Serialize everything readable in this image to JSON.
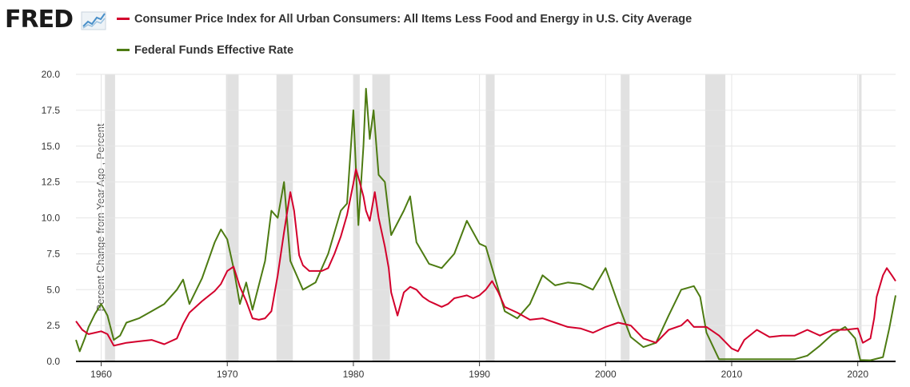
{
  "brand": {
    "logo_text": "FRED"
  },
  "colors": {
    "cpi": "#d3002c",
    "ffr": "#4d7b12",
    "recession": "#e1e1e1",
    "axis": "#000000"
  },
  "chart_data": {
    "type": "line",
    "title": "",
    "xlabel": "",
    "ylabel": "Percent Change from Year Ago , Percent",
    "xlim": [
      1958.0,
      2023.0
    ],
    "ylim": [
      0,
      20
    ],
    "x_ticks": [
      1960,
      1970,
      1980,
      1990,
      2000,
      2010,
      2020
    ],
    "y_ticks": [
      "0.0",
      "2.5",
      "5.0",
      "7.5",
      "10.0",
      "12.5",
      "15.0",
      "17.5",
      "20.0"
    ],
    "recessions": [
      [
        1960.3,
        1961.1
      ],
      [
        1969.9,
        1970.9
      ],
      [
        1973.9,
        1975.2
      ],
      [
        1980.0,
        1980.5
      ],
      [
        1981.5,
        1982.9
      ],
      [
        1990.5,
        1991.2
      ],
      [
        2001.2,
        2001.9
      ],
      [
        2007.9,
        2009.5
      ],
      [
        2020.1,
        2020.3
      ]
    ],
    "series": [
      {
        "name": "Consumer Price Index for All Urban Consumers: All Items Less Food and Energy in U.S. City Average",
        "color": "#d3002c",
        "points": [
          [
            1958.0,
            2.8
          ],
          [
            1958.5,
            2.2
          ],
          [
            1959.0,
            1.9
          ],
          [
            1959.5,
            2.0
          ],
          [
            1960.0,
            2.1
          ],
          [
            1960.5,
            1.9
          ],
          [
            1961.0,
            1.1
          ],
          [
            1961.5,
            1.2
          ],
          [
            1962.0,
            1.3
          ],
          [
            1963.0,
            1.4
          ],
          [
            1964.0,
            1.5
          ],
          [
            1965.0,
            1.2
          ],
          [
            1966.0,
            1.6
          ],
          [
            1966.5,
            2.6
          ],
          [
            1967.0,
            3.4
          ],
          [
            1968.0,
            4.2
          ],
          [
            1969.0,
            4.9
          ],
          [
            1969.5,
            5.4
          ],
          [
            1970.0,
            6.3
          ],
          [
            1970.5,
            6.6
          ],
          [
            1971.0,
            5.2
          ],
          [
            1971.5,
            4.2
          ],
          [
            1972.0,
            3.0
          ],
          [
            1972.5,
            2.9
          ],
          [
            1973.0,
            3.0
          ],
          [
            1973.5,
            3.5
          ],
          [
            1974.0,
            6.0
          ],
          [
            1974.5,
            9.0
          ],
          [
            1975.0,
            11.8
          ],
          [
            1975.3,
            10.5
          ],
          [
            1975.7,
            7.4
          ],
          [
            1976.0,
            6.7
          ],
          [
            1976.5,
            6.3
          ],
          [
            1977.0,
            6.3
          ],
          [
            1977.5,
            6.3
          ],
          [
            1978.0,
            6.5
          ],
          [
            1978.5,
            7.5
          ],
          [
            1979.0,
            8.7
          ],
          [
            1979.5,
            10.2
          ],
          [
            1980.0,
            12.4
          ],
          [
            1980.2,
            13.4
          ],
          [
            1980.5,
            12.5
          ],
          [
            1980.8,
            11.5
          ],
          [
            1981.0,
            10.5
          ],
          [
            1981.3,
            9.8
          ],
          [
            1981.7,
            11.8
          ],
          [
            1982.0,
            10.0
          ],
          [
            1982.5,
            8.0
          ],
          [
            1982.8,
            6.5
          ],
          [
            1983.0,
            4.8
          ],
          [
            1983.5,
            3.2
          ],
          [
            1984.0,
            4.8
          ],
          [
            1984.5,
            5.2
          ],
          [
            1985.0,
            5.0
          ],
          [
            1985.5,
            4.5
          ],
          [
            1986.0,
            4.2
          ],
          [
            1986.5,
            4.0
          ],
          [
            1987.0,
            3.8
          ],
          [
            1987.5,
            4.0
          ],
          [
            1988.0,
            4.4
          ],
          [
            1988.5,
            4.5
          ],
          [
            1989.0,
            4.6
          ],
          [
            1989.5,
            4.4
          ],
          [
            1990.0,
            4.6
          ],
          [
            1990.5,
            5.0
          ],
          [
            1991.0,
            5.6
          ],
          [
            1991.5,
            4.8
          ],
          [
            1992.0,
            3.8
          ],
          [
            1993.0,
            3.4
          ],
          [
            1994.0,
            2.9
          ],
          [
            1995.0,
            3.0
          ],
          [
            1996.0,
            2.7
          ],
          [
            1997.0,
            2.4
          ],
          [
            1998.0,
            2.3
          ],
          [
            1999.0,
            2.0
          ],
          [
            2000.0,
            2.4
          ],
          [
            2001.0,
            2.7
          ],
          [
            2002.0,
            2.5
          ],
          [
            2003.0,
            1.6
          ],
          [
            2004.0,
            1.3
          ],
          [
            2005.0,
            2.2
          ],
          [
            2006.0,
            2.5
          ],
          [
            2006.5,
            2.9
          ],
          [
            2007.0,
            2.4
          ],
          [
            2008.0,
            2.4
          ],
          [
            2009.0,
            1.8
          ],
          [
            2010.0,
            0.9
          ],
          [
            2010.5,
            0.7
          ],
          [
            2011.0,
            1.5
          ],
          [
            2012.0,
            2.2
          ],
          [
            2013.0,
            1.7
          ],
          [
            2014.0,
            1.8
          ],
          [
            2015.0,
            1.8
          ],
          [
            2016.0,
            2.2
          ],
          [
            2017.0,
            1.8
          ],
          [
            2018.0,
            2.2
          ],
          [
            2019.0,
            2.2
          ],
          [
            2020.0,
            2.3
          ],
          [
            2020.4,
            1.3
          ],
          [
            2021.0,
            1.6
          ],
          [
            2021.3,
            3.0
          ],
          [
            2021.5,
            4.5
          ],
          [
            2022.0,
            6.0
          ],
          [
            2022.3,
            6.5
          ],
          [
            2022.7,
            6.0
          ],
          [
            2023.0,
            5.6
          ]
        ]
      },
      {
        "name": "Federal Funds Effective Rate",
        "color": "#4d7b12",
        "points": [
          [
            1958.0,
            1.5
          ],
          [
            1958.3,
            0.7
          ],
          [
            1958.7,
            1.6
          ],
          [
            1959.0,
            2.4
          ],
          [
            1959.5,
            3.3
          ],
          [
            1960.0,
            4.0
          ],
          [
            1960.5,
            3.2
          ],
          [
            1961.0,
            1.5
          ],
          [
            1961.5,
            1.8
          ],
          [
            1962.0,
            2.7
          ],
          [
            1963.0,
            3.0
          ],
          [
            1964.0,
            3.5
          ],
          [
            1965.0,
            4.0
          ],
          [
            1966.0,
            5.0
          ],
          [
            1966.5,
            5.7
          ],
          [
            1967.0,
            4.0
          ],
          [
            1968.0,
            5.8
          ],
          [
            1969.0,
            8.3
          ],
          [
            1969.5,
            9.2
          ],
          [
            1970.0,
            8.5
          ],
          [
            1970.5,
            6.5
          ],
          [
            1971.0,
            4.0
          ],
          [
            1971.5,
            5.5
          ],
          [
            1972.0,
            3.6
          ],
          [
            1973.0,
            7.0
          ],
          [
            1973.5,
            10.5
          ],
          [
            1974.0,
            10.0
          ],
          [
            1974.5,
            12.5
          ],
          [
            1975.0,
            7.0
          ],
          [
            1975.5,
            6.0
          ],
          [
            1976.0,
            5.0
          ],
          [
            1977.0,
            5.5
          ],
          [
            1978.0,
            7.5
          ],
          [
            1979.0,
            10.5
          ],
          [
            1979.5,
            11.0
          ],
          [
            1980.0,
            17.5
          ],
          [
            1980.4,
            9.5
          ],
          [
            1980.8,
            15.0
          ],
          [
            1981.0,
            19.0
          ],
          [
            1981.3,
            15.5
          ],
          [
            1981.6,
            17.5
          ],
          [
            1982.0,
            13.0
          ],
          [
            1982.5,
            12.5
          ],
          [
            1983.0,
            8.8
          ],
          [
            1984.0,
            10.5
          ],
          [
            1984.5,
            11.5
          ],
          [
            1985.0,
            8.3
          ],
          [
            1986.0,
            6.8
          ],
          [
            1987.0,
            6.5
          ],
          [
            1988.0,
            7.5
          ],
          [
            1989.0,
            9.8
          ],
          [
            1990.0,
            8.2
          ],
          [
            1990.5,
            8.0
          ],
          [
            1991.0,
            6.5
          ],
          [
            1992.0,
            3.5
          ],
          [
            1993.0,
            3.0
          ],
          [
            1994.0,
            4.0
          ],
          [
            1995.0,
            6.0
          ],
          [
            1996.0,
            5.3
          ],
          [
            1997.0,
            5.5
          ],
          [
            1998.0,
            5.4
          ],
          [
            1999.0,
            5.0
          ],
          [
            2000.0,
            6.5
          ],
          [
            2001.0,
            4.0
          ],
          [
            2002.0,
            1.7
          ],
          [
            2003.0,
            1.0
          ],
          [
            2004.0,
            1.3
          ],
          [
            2005.0,
            3.2
          ],
          [
            2006.0,
            5.0
          ],
          [
            2007.0,
            5.25
          ],
          [
            2007.5,
            4.5
          ],
          [
            2008.0,
            2.0
          ],
          [
            2009.0,
            0.15
          ],
          [
            2010.0,
            0.15
          ],
          [
            2012.0,
            0.15
          ],
          [
            2015.0,
            0.15
          ],
          [
            2016.0,
            0.4
          ],
          [
            2017.0,
            1.1
          ],
          [
            2018.0,
            1.9
          ],
          [
            2019.0,
            2.4
          ],
          [
            2019.8,
            1.6
          ],
          [
            2020.2,
            0.1
          ],
          [
            2021.0,
            0.08
          ],
          [
            2022.0,
            0.3
          ],
          [
            2022.5,
            2.3
          ],
          [
            2023.0,
            4.6
          ]
        ]
      }
    ]
  }
}
